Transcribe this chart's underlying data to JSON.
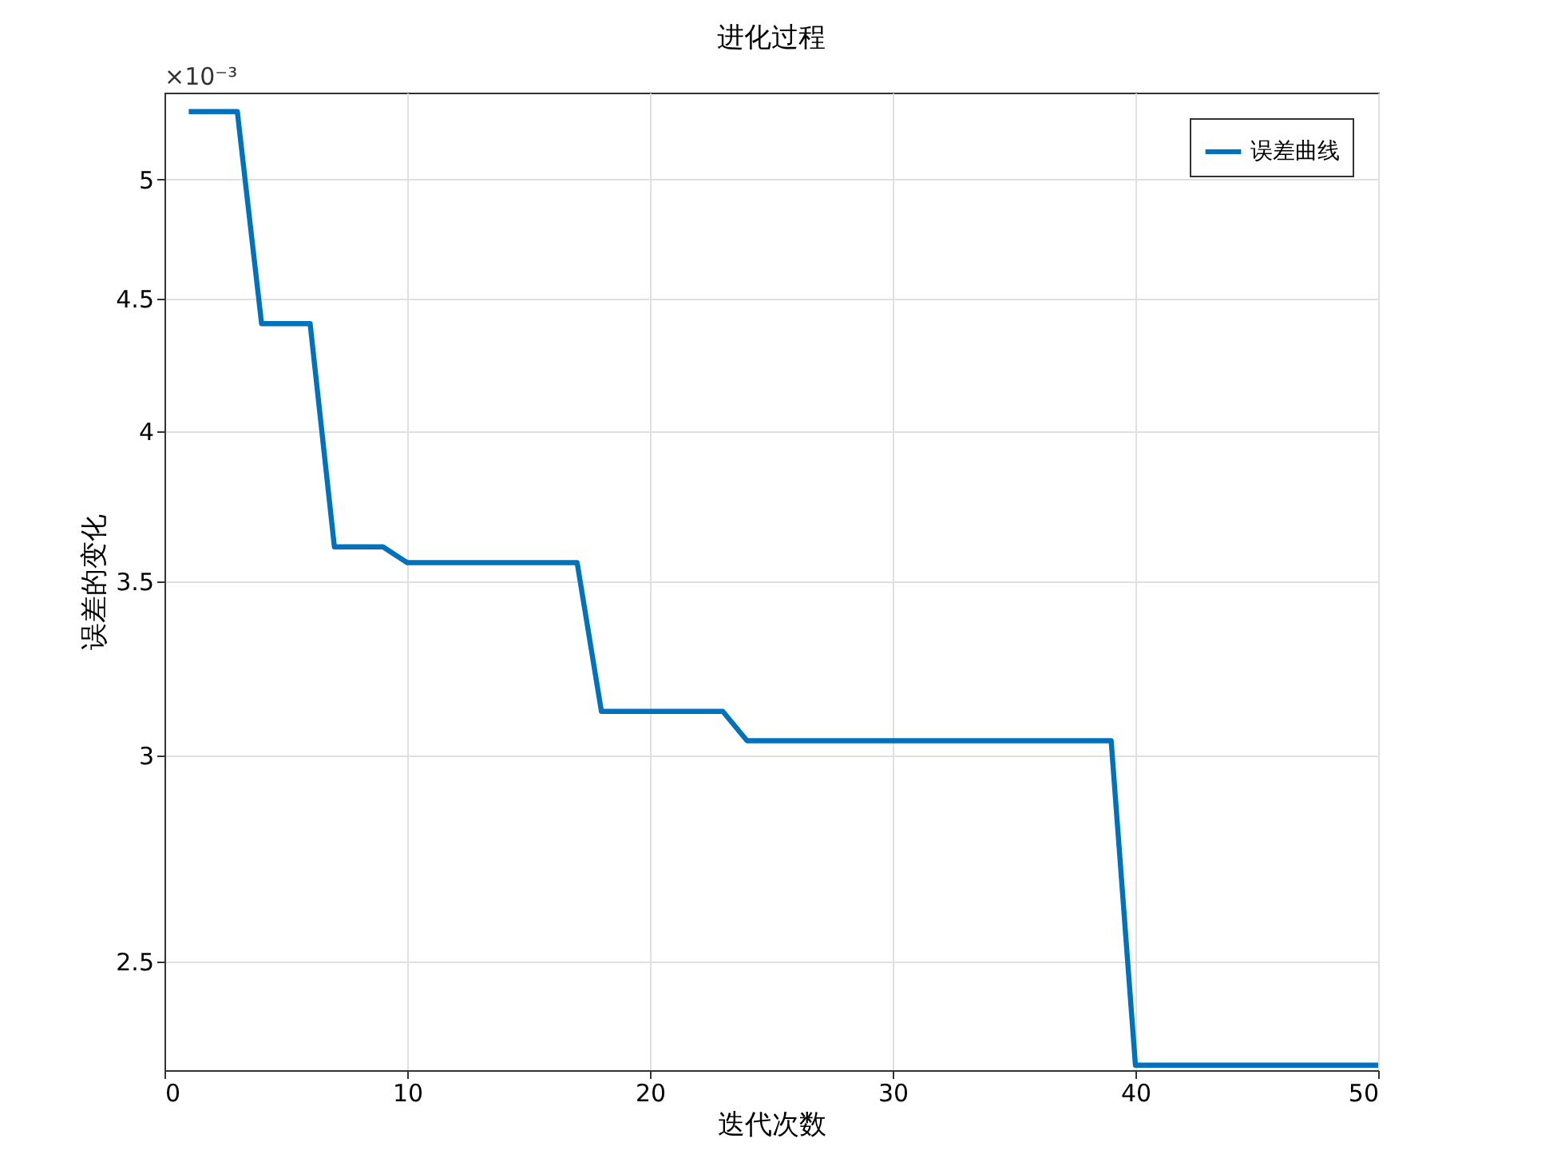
{
  "chart_data": {
    "type": "line",
    "title": "进化过程",
    "xlabel": "迭代次数",
    "ylabel": "误差的变化",
    "x": [
      1,
      2,
      3,
      4,
      5,
      6,
      7,
      8,
      9,
      10,
      11,
      12,
      13,
      14,
      15,
      16,
      17,
      18,
      19,
      20,
      21,
      22,
      23,
      24,
      25,
      26,
      27,
      28,
      29,
      30,
      31,
      32,
      33,
      34,
      35,
      36,
      37,
      38,
      39,
      40,
      41,
      42,
      43,
      44,
      45,
      46,
      47,
      48,
      49,
      50
    ],
    "series": [
      {
        "name": "误差曲线",
        "color": "#0072bd",
        "values": [
          5.31,
          5.31,
          5.31,
          4.4,
          4.4,
          4.4,
          3.61,
          3.61,
          3.61,
          3.56,
          3.56,
          3.56,
          3.56,
          3.56,
          3.56,
          3.56,
          3.56,
          3.12,
          3.12,
          3.12,
          3.12,
          3.12,
          3.12,
          3.04,
          3.04,
          3.04,
          3.04,
          3.04,
          3.04,
          3.04,
          3.04,
          3.04,
          3.04,
          3.04,
          3.04,
          3.04,
          3.04,
          3.04,
          3.04,
          2.28,
          2.28,
          2.28,
          2.28,
          2.28,
          2.28,
          2.28,
          2.28,
          2.28,
          2.28,
          2.28
        ]
      }
    ],
    "xlim": [
      0,
      50
    ],
    "xticks": [
      0,
      10,
      20,
      30,
      40,
      50
    ],
    "ylim": [
      2.27,
      5.4
    ],
    "yticks": [
      2.5,
      3,
      3.5,
      4,
      4.5,
      5
    ],
    "annotations": [
      "×10⁻³"
    ],
    "log": "y",
    "grid": true,
    "legend": "top right",
    "line_style": "solid",
    "marker": "none"
  }
}
